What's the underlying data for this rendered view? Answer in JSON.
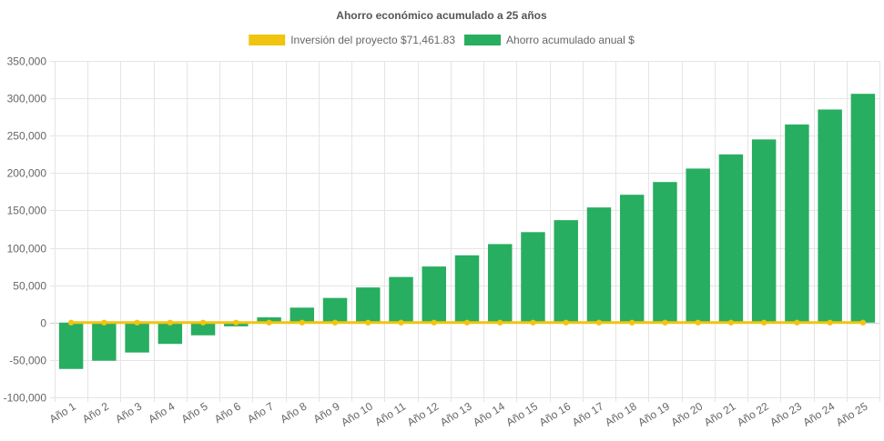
{
  "chart_data": {
    "type": "bar",
    "title": "Ahorro económico acumulado a 25 años",
    "categories": [
      "Año 1",
      "Año 2",
      "Año 3",
      "Año 4",
      "Año 5",
      "Año 6",
      "Año 7",
      "Año 8",
      "Año 9",
      "Año 10",
      "Año 11",
      "Año 12",
      "Año 13",
      "Año 14",
      "Año 15",
      "Año 16",
      "Año 17",
      "Año 18",
      "Año 19",
      "Año 20",
      "Año 21",
      "Año 22",
      "Año 23",
      "Año 24",
      "Año 25"
    ],
    "series": [
      {
        "name": "Ahorro acumulado anual $",
        "type": "bar",
        "color": "#27ae60",
        "values": [
          -62000,
          -51000,
          -40000,
          -28500,
          -17000,
          -5000,
          7000,
          20000,
          33000,
          47000,
          61000,
          75000,
          90000,
          105000,
          121000,
          137000,
          154000,
          171000,
          188000,
          206000,
          225000,
          245000,
          265000,
          285000,
          306000
        ]
      },
      {
        "name": "Inversión del proyecto $71,461.83",
        "type": "line",
        "color": "#f1c40f",
        "values": [
          0,
          0,
          0,
          0,
          0,
          0,
          0,
          0,
          0,
          0,
          0,
          0,
          0,
          0,
          0,
          0,
          0,
          0,
          0,
          0,
          0,
          0,
          0,
          0,
          0
        ]
      }
    ],
    "ylim": [
      -100000,
      350000
    ],
    "yticks": [
      -100000,
      -50000,
      0,
      50000,
      100000,
      150000,
      200000,
      250000,
      300000,
      350000
    ],
    "ytick_labels": [
      "-100,000",
      "-50,000",
      "0",
      "50,000",
      "100,000",
      "150,000",
      "200,000",
      "250,000",
      "300,000",
      "350,000"
    ],
    "grid": true,
    "legend_position": "top"
  }
}
